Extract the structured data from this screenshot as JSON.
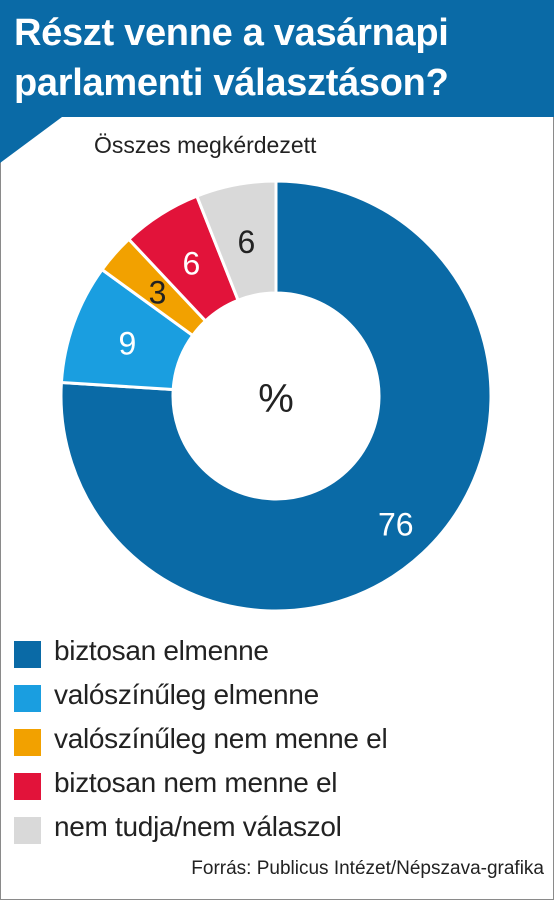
{
  "header": {
    "title_line1": "Részt venne a vasárnapi",
    "title_line2": "parlamenti választáson?"
  },
  "subtitle": "Összes megkérdezett",
  "center_label": "%",
  "source": "Forrás: Publicus Intézet/Népszava-grafika",
  "colors": {
    "header": "#0a6aa6"
  },
  "chart_data": {
    "type": "pie",
    "variant": "donut",
    "unit": "%",
    "slices": [
      {
        "label": "biztosan elmenne",
        "value": 76,
        "color": "#0a6aa6",
        "text_color": "#ffffff"
      },
      {
        "label": "valószínűleg elmenne",
        "value": 9,
        "color": "#1a9ee0",
        "text_color": "#ffffff"
      },
      {
        "label": "valószínűleg nem menne el",
        "value": 3,
        "color": "#f2a100",
        "text_color": "#222222"
      },
      {
        "label": "biztosan nem menne el",
        "value": 6,
        "color": "#e2133a",
        "text_color": "#ffffff"
      },
      {
        "label": "nem tudja/nem válaszol",
        "value": 6,
        "color": "#d9d9d9",
        "text_color": "#222222"
      }
    ]
  }
}
